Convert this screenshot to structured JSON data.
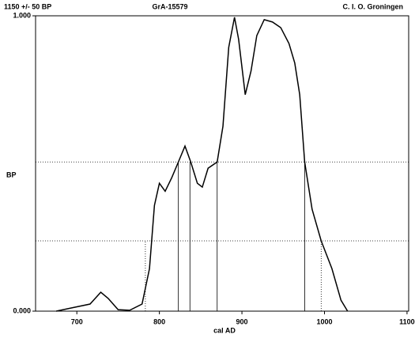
{
  "chart_data": {
    "type": "line",
    "title": "GrA-15579",
    "subtitle": "1150 +/- 50 BP",
    "annotation": "C. I. O. Groningen",
    "x_label": "cal AD",
    "y_label": "BP",
    "x": [
      675,
      692,
      716,
      729,
      738,
      750,
      764,
      779,
      788,
      794,
      800,
      807,
      815,
      823,
      831,
      838,
      846,
      852,
      859,
      870,
      877,
      884,
      891,
      896,
      904,
      911,
      918,
      927,
      937,
      947,
      957,
      964,
      970,
      976,
      985,
      996,
      1009,
      1020,
      1028
    ],
    "values": [
      0,
      0.01,
      0.024,
      0.064,
      0.043,
      0.005,
      0.003,
      0.024,
      0.144,
      0.358,
      0.433,
      0.406,
      0.452,
      0.505,
      0.559,
      0.505,
      0.433,
      0.42,
      0.484,
      0.505,
      0.626,
      0.893,
      0.995,
      0.92,
      0.733,
      0.813,
      0.933,
      0.987,
      0.979,
      0.96,
      0.906,
      0.84,
      0.733,
      0.505,
      0.345,
      0.238,
      0.144,
      0.037,
      0
    ],
    "levels": [
      0.505,
      0.238
    ],
    "ranges_1sigma": [
      823,
      837,
      870,
      976
    ],
    "ranges_2sigma": [
      783,
      996
    ],
    "xlim": [
      650,
      1102
    ],
    "ylim": [
      0,
      1
    ],
    "xticks": [
      700,
      800,
      900,
      1000,
      1100
    ],
    "yticks": [
      {
        "value": 0,
        "label": "0.000"
      },
      {
        "value": 1,
        "label": "1.000"
      }
    ],
    "color": "#000000"
  }
}
